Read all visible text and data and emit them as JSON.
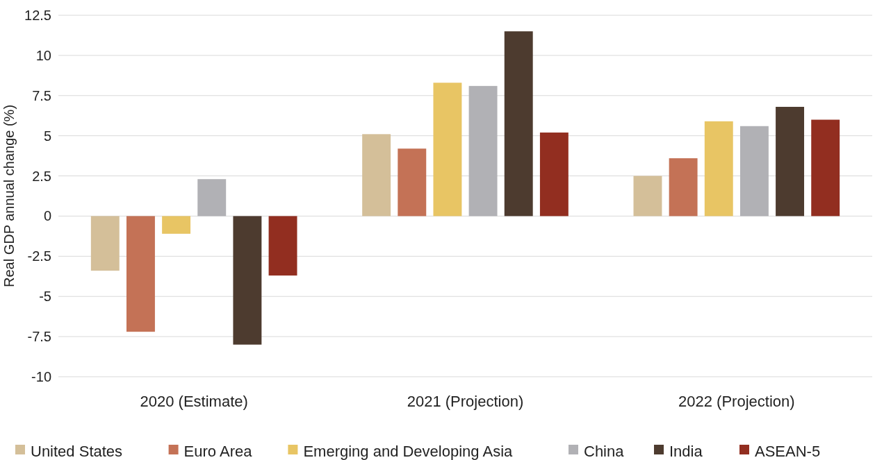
{
  "chart_data": {
    "type": "bar",
    "ylabel": "Real GDP annual change (%)",
    "categories": [
      "2020 (Estimate)",
      "2021 (Projection)",
      "2022 (Projection)"
    ],
    "series": [
      {
        "name": "United States",
        "color": "#d4bf99",
        "values": [
          -3.4,
          5.1,
          2.5
        ]
      },
      {
        "name": "Euro Area",
        "color": "#c47256",
        "values": [
          -7.2,
          4.2,
          3.6
        ]
      },
      {
        "name": "Emerging and Developing Asia",
        "color": "#e8c564",
        "values": [
          -1.1,
          8.3,
          5.9
        ]
      },
      {
        "name": "China",
        "color": "#b1b1b5",
        "values": [
          2.3,
          8.1,
          5.6
        ]
      },
      {
        "name": "India",
        "color": "#4d3b2f",
        "values": [
          -8.0,
          11.5,
          6.8
        ]
      },
      {
        "name": "ASEAN-5",
        "color": "#922e20",
        "values": [
          -3.7,
          5.2,
          6.0
        ]
      }
    ],
    "ylim": [
      -10,
      12.5
    ],
    "yticks": [
      -10,
      -7.5,
      -5,
      -2.5,
      0,
      2.5,
      5,
      7.5,
      10,
      12.5
    ],
    "grid": "y",
    "legend": "bottom"
  }
}
